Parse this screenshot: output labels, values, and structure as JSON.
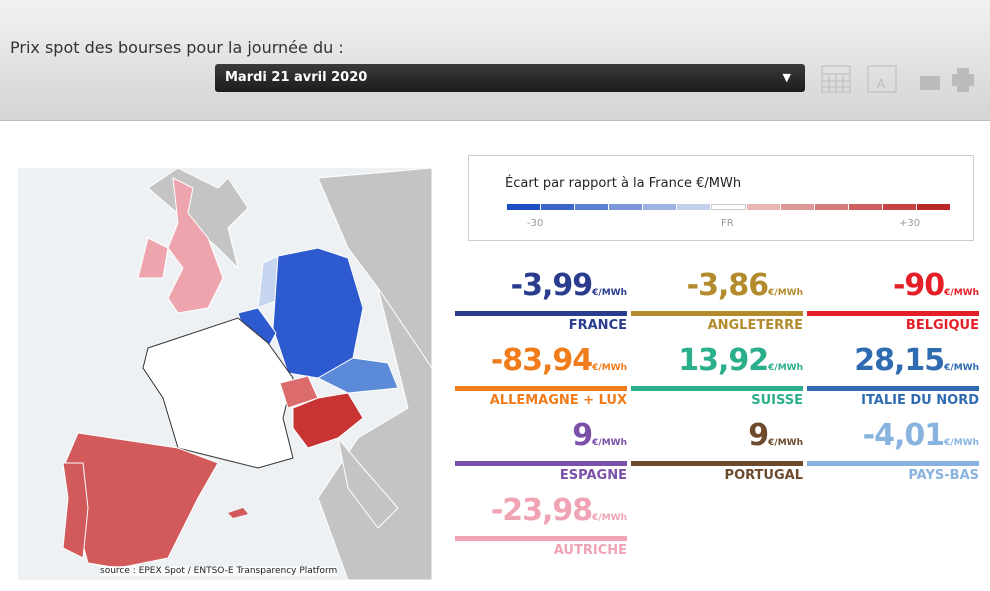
{
  "header": {
    "title": "Prix spot des bourses pour la journée du :",
    "date": "Mardi 21 avril 2020"
  },
  "legend": {
    "title": "Écart par rapport à la France €/MWh",
    "min_label": "-30",
    "mid_label": "FR",
    "max_label": "+30"
  },
  "source": "source : EPEX Spot / ENTSO-E Transparency Platform",
  "tiles": [
    {
      "value": "-3,99",
      "unit": "€/MWh",
      "name": "FRANCE",
      "color": "#2a3c8e"
    },
    {
      "value": "-3,86",
      "unit": "€/MWh",
      "name": "ANGLETERRE",
      "color": "#b38b2d"
    },
    {
      "value": "-90",
      "unit": "€/MWh",
      "name": "BELGIQUE",
      "color": "#e51f28"
    },
    {
      "value": "-83,94",
      "unit": "€/MWh",
      "name": "ALLEMAGNE + LUX",
      "color": "#f07c1b"
    },
    {
      "value": "13,92",
      "unit": "€/MWh",
      "name": "SUISSE",
      "color": "#2aae8b"
    },
    {
      "value": "28,15",
      "unit": "€/MWh",
      "name": "ITALIE DU NORD",
      "color": "#2f6bb0"
    },
    {
      "value": "9",
      "unit": "€/MWh",
      "name": "ESPAGNE",
      "color": "#7a50a8"
    },
    {
      "value": "9",
      "unit": "€/MWh",
      "name": "PORTUGAL",
      "color": "#6c4a2b"
    },
    {
      "value": "-4,01",
      "unit": "€/MWh",
      "name": "PAYS-BAS",
      "color": "#88b3df"
    },
    {
      "value": "-23,98",
      "unit": "€/MWh",
      "name": "AUTRICHE",
      "color": "#f0a3b3"
    }
  ]
}
